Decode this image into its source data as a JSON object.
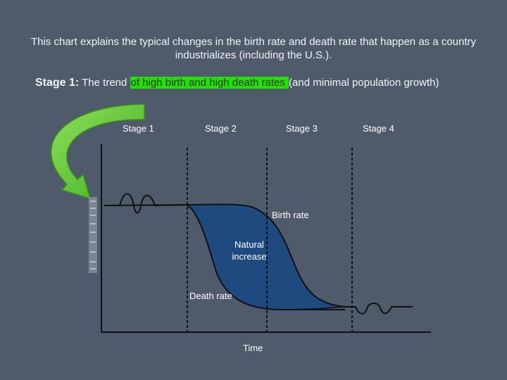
{
  "intro_text": "This chart explains the typical changes in the birth rate and death rate that happen as a country industrializes (including the U.S.).",
  "stage_line": {
    "lead": "Stage 1:",
    "before": " The trend ",
    "highlight": "of high birth and high death rates ",
    "after": "(and minimal population growth)"
  },
  "stages": [
    "Stage 1",
    "Stage 2",
    "Stage 3",
    "Stage 4"
  ],
  "labels": {
    "birth_rate": "Birth rate",
    "natural_increase_1": "Natural",
    "natural_increase_2": "increase",
    "death_rate": "Death rate",
    "time": "Time"
  },
  "colors": {
    "background": "#4f5a6b",
    "highlight": "#22e000",
    "fill": "#1f4a80",
    "arrow": "#5cc832"
  }
}
